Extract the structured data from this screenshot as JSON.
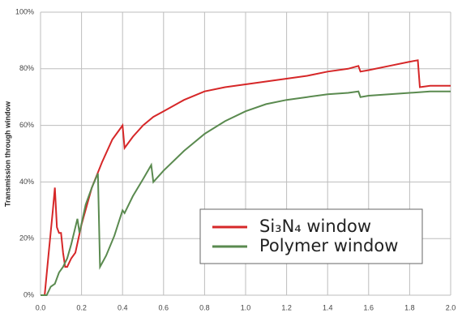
{
  "chart_data": {
    "type": "line",
    "y_label": "Transmission through window",
    "series": [
      {
        "name": "Si₃N₄ window",
        "color": "#d62728",
        "x": [
          0.0,
          0.02,
          0.04,
          0.06,
          0.07,
          0.08,
          0.09,
          0.1,
          0.11,
          0.12,
          0.13,
          0.15,
          0.17,
          0.2,
          0.25,
          0.3,
          0.35,
          0.39,
          0.4,
          0.41,
          0.45,
          0.5,
          0.55,
          0.6,
          0.7,
          0.8,
          0.9,
          1.0,
          1.1,
          1.2,
          1.3,
          1.4,
          1.5,
          1.55,
          1.56,
          1.6,
          1.7,
          1.8,
          1.84,
          1.85,
          1.9,
          2.0
        ],
        "values": [
          0,
          0,
          15,
          30,
          38,
          24,
          22,
          22,
          15,
          10,
          10,
          13,
          15,
          25,
          38,
          47,
          55,
          59,
          60,
          52,
          56,
          60,
          63,
          65,
          69,
          72,
          73.5,
          74.5,
          75.5,
          76.5,
          77.5,
          79,
          80,
          81,
          79,
          79.5,
          81,
          82.5,
          83,
          73.5,
          74,
          74
        ]
      },
      {
        "name": "Polymer window",
        "color": "#5a8a4f",
        "x": [
          0.0,
          0.03,
          0.05,
          0.07,
          0.09,
          0.11,
          0.13,
          0.15,
          0.18,
          0.19,
          0.22,
          0.25,
          0.28,
          0.29,
          0.32,
          0.36,
          0.4,
          0.41,
          0.45,
          0.5,
          0.54,
          0.55,
          0.6,
          0.7,
          0.8,
          0.9,
          1.0,
          1.1,
          1.2,
          1.3,
          1.4,
          1.5,
          1.55,
          1.56,
          1.6,
          1.7,
          1.8,
          1.9,
          2.0
        ],
        "values": [
          0,
          0,
          3,
          4,
          8,
          10,
          13,
          18,
          27,
          22,
          32,
          38,
          43,
          10,
          14,
          21,
          30,
          29,
          35,
          41,
          46,
          40,
          44,
          51,
          57,
          61.5,
          65,
          67.5,
          69,
          70,
          71,
          71.5,
          72,
          70,
          70.5,
          71,
          71.5,
          72,
          72
        ]
      }
    ],
    "xlim": [
      0,
      2
    ],
    "xticks": [
      {
        "value": 0,
        "label": "0.0"
      },
      0.2,
      0.4,
      0.6,
      0.8,
      {
        "value": 1,
        "label": "1.0"
      },
      1.2,
      1.4,
      1.6,
      1.8,
      {
        "value": 2,
        "label": "2.0"
      }
    ],
    "ylim": [
      0,
      100
    ],
    "yticks": [
      {
        "value": 0,
        "label": "0%"
      },
      {
        "value": 20,
        "label": "20%"
      },
      {
        "value": 40,
        "label": "40%"
      },
      {
        "value": 60,
        "label": "60%"
      },
      {
        "value": 80,
        "label": "80%"
      },
      {
        "value": 100,
        "label": "100%"
      }
    ],
    "grid": true
  }
}
